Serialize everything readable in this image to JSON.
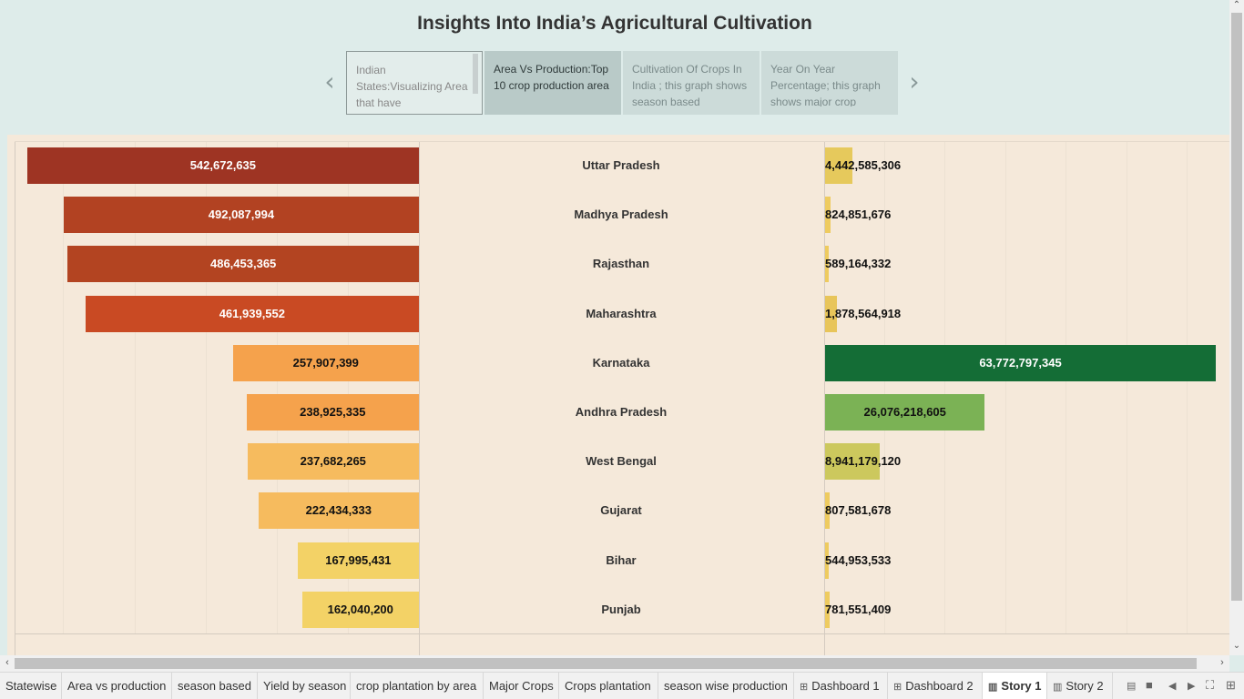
{
  "title": "Insights Into India’s Agricultural Cultivation",
  "story_points": [
    {
      "text": "Indian States:Visualizing Area that have"
    },
    {
      "text": "Area Vs Production:Top 10 crop production area"
    },
    {
      "text": "Cultivation  Of Crops In India ; this graph shows season based"
    },
    {
      "text": "Year  On Year Percentage; this graph shows major crop"
    }
  ],
  "nav": {
    "prev": "‹",
    "next": "›"
  },
  "chart_data": {
    "type": "bar",
    "categories": [
      "Uttar Pradesh",
      "Madhya Pradesh",
      "Rajasthan",
      "Maharashtra",
      "Karnataka",
      "Andhra Pradesh",
      "West Bengal",
      "Gujarat",
      "Bihar",
      "Punjab"
    ],
    "series": [
      {
        "values": [
          542672635,
          492087994,
          486453365,
          461939552,
          257907399,
          238925335,
          237682265,
          222434333,
          167995431,
          162040200
        ]
      },
      {
        "values": [
          4442585306,
          824851676,
          589164332,
          1878564918,
          63772797345,
          26076218605,
          8941179120,
          807581678,
          544953533,
          781551409
        ]
      }
    ],
    "area_labels": [
      "542,672,635",
      "492,087,994",
      "486,453,365",
      "461,939,552",
      "257,907,399",
      "238,925,335",
      "237,682,265",
      "222,434,333",
      "167,995,431",
      "162,040,200"
    ],
    "production_labels": [
      "4,442,585,306",
      "824,851,676",
      "589,164,332",
      "1,878,564,918",
      "63,772,797,345",
      "26,076,218,605",
      "8,941,179,120",
      "807,581,678",
      "544,953,533",
      "781,551,409"
    ],
    "area_colors": [
      "#9e3423",
      "#b24222",
      "#b34421",
      "#c94a23",
      "#f5a24c",
      "#f5a24c",
      "#f6bb5e",
      "#f6bb5e",
      "#f3d266",
      "#f3d266"
    ],
    "production_colors": [
      "#e6c95c",
      "#eecb5f",
      "#eecb5f",
      "#e8c55a",
      "#146d36",
      "#7bb255",
      "#ccc85d",
      "#eecb5f",
      "#eecb5f",
      "#eecb5f"
    ],
    "area_label_colors": [
      "#ffffff",
      "#ffffff",
      "#ffffff",
      "#ffffff",
      "#111111",
      "#111111",
      "#111111",
      "#111111",
      "#111111",
      "#111111"
    ]
  },
  "tabs": [
    {
      "label": "Statewise",
      "icon": ""
    },
    {
      "label": "Area vs production",
      "icon": ""
    },
    {
      "label": "season based",
      "icon": ""
    },
    {
      "label": "Yield by season",
      "icon": ""
    },
    {
      "label": "crop plantation by area",
      "icon": ""
    },
    {
      "label": "Major Crops",
      "icon": ""
    },
    {
      "label": "Crops plantation",
      "icon": ""
    },
    {
      "label": "season wise production",
      "icon": ""
    },
    {
      "label": "Dashboard 1",
      "icon": "dashboard-icon"
    },
    {
      "label": "Dashboard 2",
      "icon": "dashboard-icon"
    },
    {
      "label": "Story 1",
      "icon": "story-icon"
    },
    {
      "label": "Story 2",
      "icon": "story-icon"
    }
  ],
  "active_tab": "Story 1",
  "icons": {
    "dashboard": "⊞",
    "story": "▥"
  }
}
